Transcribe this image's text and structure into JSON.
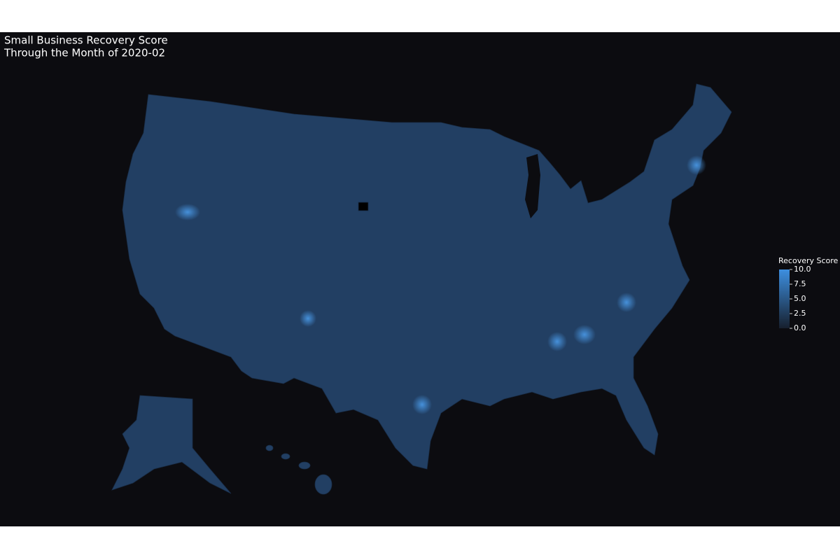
{
  "chart_data": {
    "type": "choropleth",
    "title": "Small Business Recovery Score",
    "subtitle": "Through the Month of 2020-02",
    "colorbar_title": "Recovery Score",
    "zlim": [
      0,
      10
    ],
    "zticks": [
      {
        "value": 0,
        "label": "0.0"
      },
      2.5,
      {
        "value": 5,
        "label": "5.0"
      },
      7.5,
      {
        "value": 10,
        "label": "10.0"
      }
    ],
    "colorscale": [
      "#17202e",
      "#3d8fe0"
    ]
  }
}
